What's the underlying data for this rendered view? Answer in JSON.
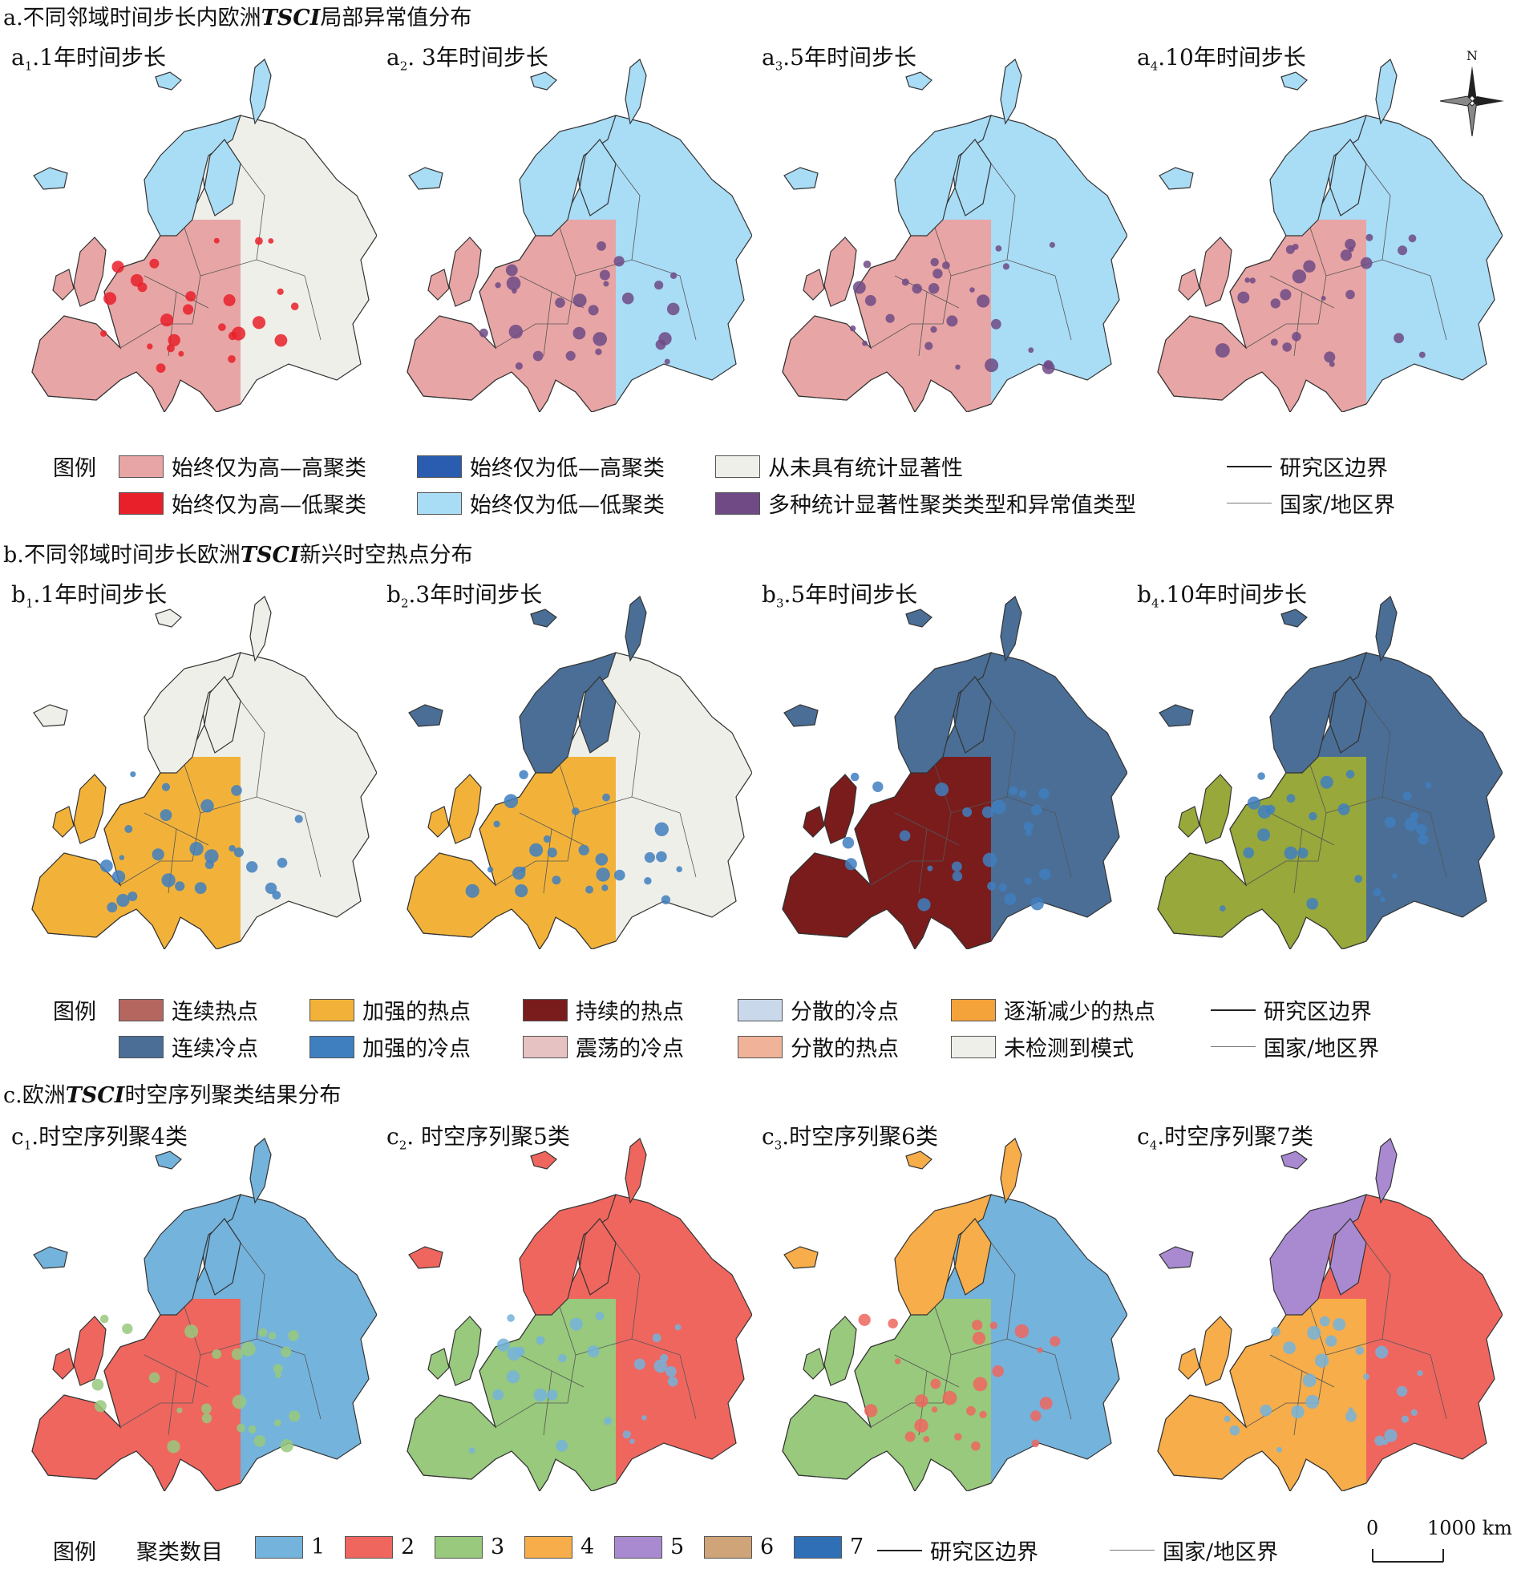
{
  "sections": {
    "a": {
      "title_prefix": "a.不同邻域时间步长内欧洲",
      "title_em": "TSCI",
      "title_suffix": "局部异常值分布",
      "panels": [
        {
          "label": "a",
          "sub": "1",
          "text": ".1年时间步长"
        },
        {
          "label": "a",
          "sub": "2",
          "text": ". 3年时间步长"
        },
        {
          "label": "a",
          "sub": "3",
          "text": ".5年时间步长"
        },
        {
          "label": "a",
          "sub": "4",
          "text": ".10年时间步长"
        }
      ],
      "legend_title": "图例",
      "legend": [
        {
          "label": "始终仅为高—高聚类",
          "color": "#e8a5a5"
        },
        {
          "label": "始终仅为低—高聚类",
          "color": "#2a5db0"
        },
        {
          "label": "从未具有统计显著性",
          "color": "#efefe9"
        },
        {
          "label": "研究区边界",
          "line": "thick"
        },
        {
          "label": "始终仅为高—低聚类",
          "color": "#e8202a"
        },
        {
          "label": "始终仅为低—低聚类",
          "color": "#a9dcf5"
        },
        {
          "label": "多种统计显著性聚类类型和异常值类型",
          "color": "#6f4a85"
        },
        {
          "label": "国家/地区界",
          "line": "thin"
        }
      ]
    },
    "b": {
      "title_prefix": "b.不同邻域时间步长欧洲",
      "title_em": "TSCI",
      "title_suffix": "新兴时空热点分布",
      "panels": [
        {
          "label": "b",
          "sub": "1",
          "text": ".1年时间步长"
        },
        {
          "label": "b",
          "sub": "2",
          "text": ".3年时间步长"
        },
        {
          "label": "b",
          "sub": "3",
          "text": ".5年时间步长"
        },
        {
          "label": "b",
          "sub": "4",
          "text": ".10年时间步长"
        }
      ],
      "legend_title": "图例",
      "legend": [
        {
          "label": "连续热点",
          "color": "#b5675f"
        },
        {
          "label": "加强的热点",
          "color": "#f2b23a"
        },
        {
          "label": "持续的热点",
          "color": "#7a1c1c"
        },
        {
          "label": "分散的冷点",
          "color": "#c9d8ea"
        },
        {
          "label": "逐渐减少的热点",
          "color": "#f4a23a"
        },
        {
          "label": "研究区边界",
          "line": "thick"
        },
        {
          "label": "连续冷点",
          "color": "#4a6e96"
        },
        {
          "label": "加强的冷点",
          "color": "#3f7fc0"
        },
        {
          "label": "震荡的冷点",
          "color": "#e6c2c2"
        },
        {
          "label": "分散的热点",
          "color": "#f0b39a"
        },
        {
          "label": "未检测到模式",
          "color": "#efefe9"
        },
        {
          "label": "国家/地区界",
          "line": "thin"
        }
      ]
    },
    "c": {
      "title_prefix": "c.欧洲",
      "title_em": "TSCI",
      "title_suffix": "时空序列聚类结果分布",
      "panels": [
        {
          "label": "c",
          "sub": "1",
          "text": ".时空序列聚4类"
        },
        {
          "label": "c",
          "sub": "2",
          "text": ". 时空序列聚5类"
        },
        {
          "label": "c",
          "sub": "3",
          "text": ".时空序列聚6类"
        },
        {
          "label": "c",
          "sub": "4",
          "text": ".时空序列聚7类"
        }
      ],
      "legend_title": "图例",
      "legend_subtitle": "聚类数目",
      "legend": [
        {
          "label": "1",
          "color": "#74b3dc"
        },
        {
          "label": "2",
          "color": "#ef665f"
        },
        {
          "label": "3",
          "color": "#98c97c"
        },
        {
          "label": "4",
          "color": "#f6ad4a"
        },
        {
          "label": "5",
          "color": "#a98ad0"
        },
        {
          "label": "6",
          "color": "#cfa478"
        },
        {
          "label": "7",
          "color": "#2f6fb5"
        },
        {
          "label": "研究区边界",
          "line": "thick"
        },
        {
          "label": "国家/地区界",
          "line": "thin"
        }
      ]
    }
  },
  "scale_bar": {
    "start": "0",
    "end": "1000 km"
  },
  "north_arrow": {
    "label": "N"
  },
  "map_fills": {
    "a": [
      {
        "west": "#e8a5a5",
        "east": "#efefe9",
        "north": "#a9dcf5",
        "spots": "#e8202a"
      },
      {
        "west": "#e8a5a5",
        "east": "#a9dcf5",
        "north": "#a9dcf5",
        "spots": "#6f4a85"
      },
      {
        "west": "#e8a5a5",
        "east": "#a9dcf5",
        "north": "#a9dcf5",
        "spots": "#6f4a85"
      },
      {
        "west": "#e8a5a5",
        "east": "#a9dcf5",
        "north": "#a9dcf5",
        "spots": "#6f4a85"
      }
    ],
    "b": [
      {
        "west": "#f2b23a",
        "east": "#efefe9",
        "north": "#efefe9",
        "spots": "#3f7fc0"
      },
      {
        "west": "#f2b23a",
        "east": "#efefe9",
        "north": "#4a6e96",
        "spots": "#3f7fc0"
      },
      {
        "west": "#7a1c1c",
        "east": "#4a6e96",
        "north": "#4a6e96",
        "spots": "#3f7fc0"
      },
      {
        "west": "#98a83a",
        "east": "#4a6e96",
        "north": "#4a6e96",
        "spots": "#3f7fc0"
      }
    ],
    "c": [
      {
        "west": "#ef665f",
        "east": "#74b3dc",
        "north": "#74b3dc",
        "spots": "#98c97c"
      },
      {
        "west": "#98c97c",
        "east": "#ef665f",
        "north": "#ef665f",
        "spots": "#74b3dc"
      },
      {
        "west": "#98c97c",
        "east": "#74b3dc",
        "north": "#f6ad4a",
        "spots": "#ef665f"
      },
      {
        "west": "#f6ad4a",
        "east": "#ef665f",
        "north": "#a98ad0",
        "spots": "#74b3dc"
      }
    ]
  }
}
